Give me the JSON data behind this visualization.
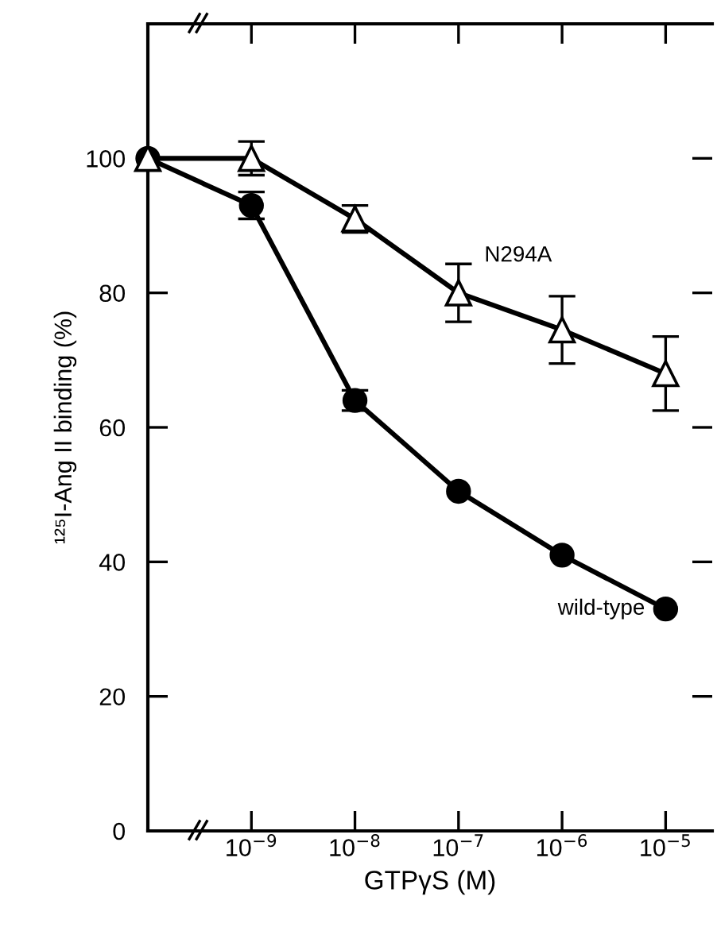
{
  "chart_data": {
    "type": "line",
    "xlabel": "GTPγS (M)",
    "ylabel": "¹²⁵I-Ang II binding (%)",
    "categories": [
      null,
      "10$^{−9}$",
      "10$^{−8}$",
      "10$^{−7}$",
      "10$^{−6}$",
      "10$^{−5}$"
    ],
    "series": [
      {
        "name": "wild-type",
        "color": "#000000",
        "marker": "circle",
        "values": [
          100,
          93,
          64,
          50.5,
          41,
          33
        ],
        "errors": [
          null,
          2,
          1.5,
          null,
          null,
          null
        ]
      },
      {
        "name": "N294A",
        "color": "#000000",
        "marker": "triangle",
        "values": [
          100,
          100,
          91,
          80,
          74.5,
          68
        ],
        "errors": [
          null,
          2.5,
          2,
          4.3,
          5,
          5.5
        ]
      }
    ],
    "ylim": [
      0,
      120
    ],
    "yticks": [
      0,
      20,
      40,
      60,
      80,
      100
    ],
    "grid": false,
    "legend": false,
    "line_style": "solid"
  }
}
